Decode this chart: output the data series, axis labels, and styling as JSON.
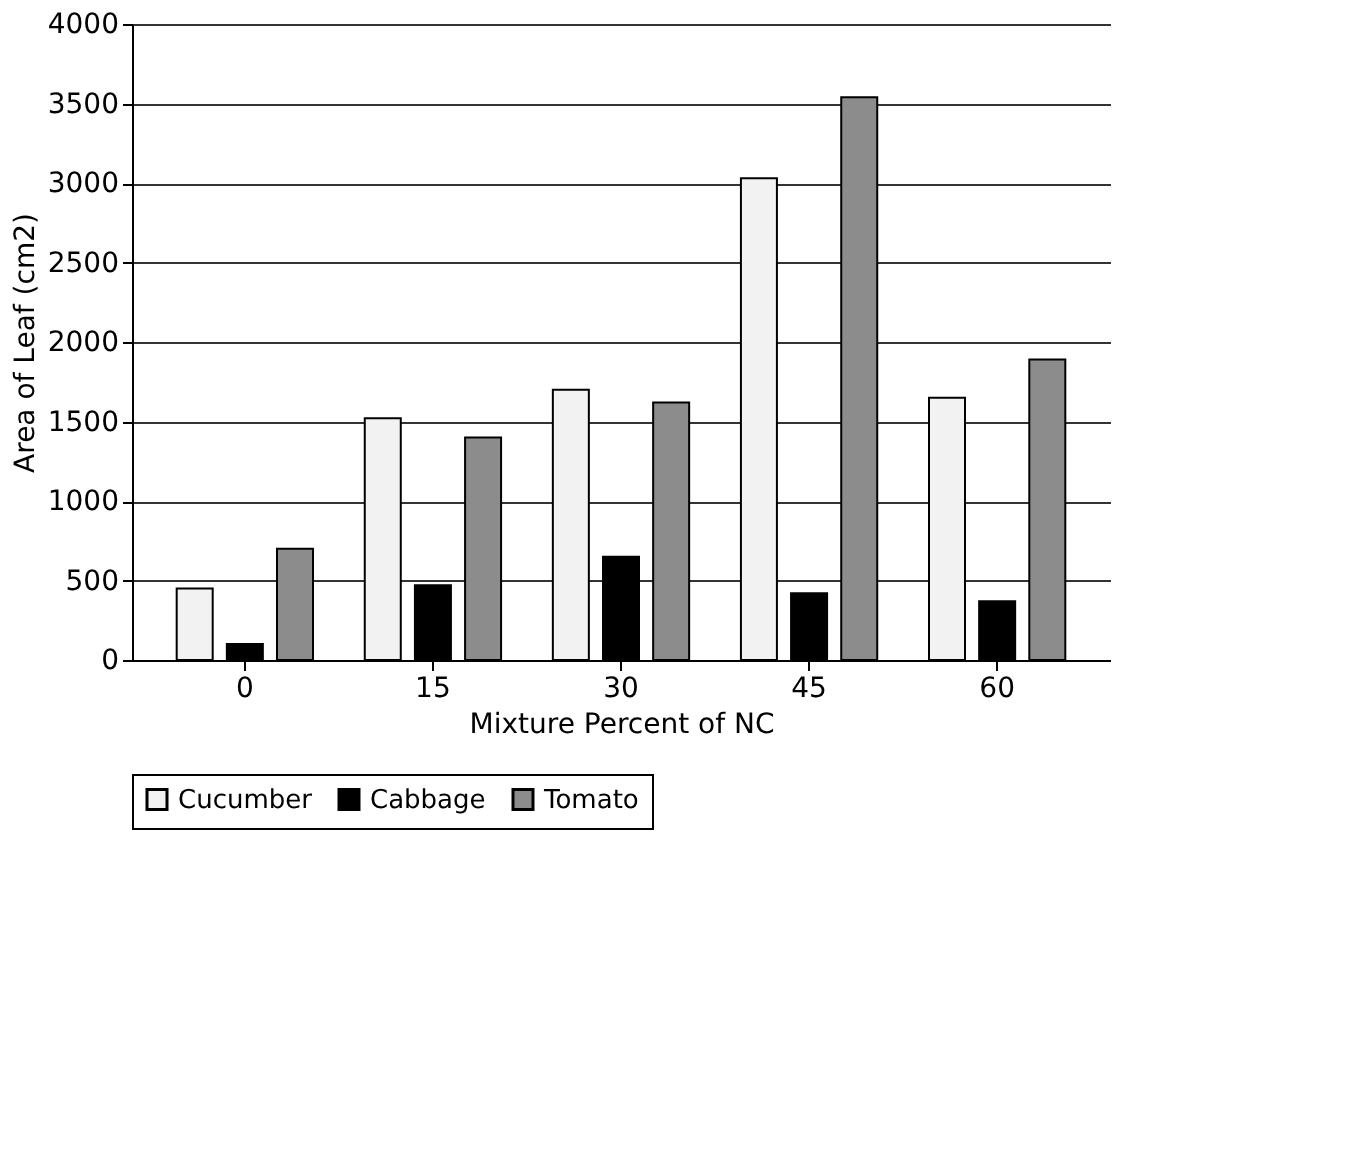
{
  "chart_data": {
    "type": "bar",
    "xlabel": "Mixture Percent of NC",
    "ylabel": "Area of Leaf (cm2)",
    "categories": [
      "0",
      "15",
      "30",
      "45",
      "60"
    ],
    "series": [
      {
        "name": "Cucumber",
        "color": "#f2f2f2",
        "values": [
          450,
          1520,
          1700,
          3030,
          1650
        ]
      },
      {
        "name": "Cabbage",
        "color": "#000000",
        "values": [
          100,
          470,
          650,
          420,
          370
        ]
      },
      {
        "name": "Tomato",
        "color": "#8c8c8c",
        "values": [
          700,
          1400,
          1620,
          3540,
          1890
        ]
      }
    ],
    "ylim": [
      0,
      4000
    ],
    "yticks": [
      0,
      500,
      1000,
      1500,
      2000,
      2500,
      3000,
      3500,
      4000
    ],
    "grid": "y",
    "legend": "bottom"
  }
}
